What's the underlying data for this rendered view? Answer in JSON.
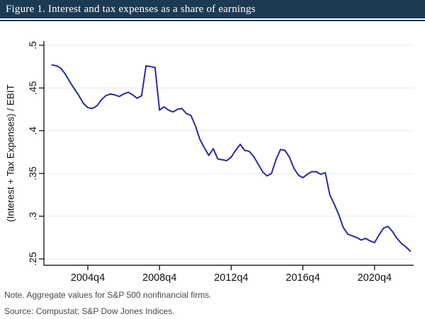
{
  "header": {
    "title": "Figure 1. Interest and tax expenses as a share of earnings",
    "bar_color": "#1c3a54",
    "text_color": "#ffffff"
  },
  "notes": {
    "note": "Note. Aggregate values for S&P 500 nonfinancial firms.",
    "source": "Source: Compustat; S&P Dow Jones Indices."
  },
  "chart_data": {
    "type": "line",
    "title": "",
    "xlabel": "",
    "ylabel": "(Interest + Tax Expenses) / EBIT",
    "ylim": [
      0.25,
      0.5
    ],
    "grid": true,
    "grid_color": "#e3e9ee",
    "axis_color": "#000000",
    "line_color": "#2a2a9e",
    "legend": "none",
    "y_ticks": [
      {
        "label": ".25",
        "value": 0.25
      },
      {
        "label": ".3",
        "value": 0.3
      },
      {
        "label": ".35",
        "value": 0.35
      },
      {
        "label": ".4",
        "value": 0.4
      },
      {
        "label": ".45",
        "value": 0.45
      },
      {
        "label": ".5",
        "value": 0.5
      }
    ],
    "x_ticks": [
      "2004q4",
      "2008q4",
      "2012q4",
      "2016q4",
      "2020q4"
    ],
    "series": [
      {
        "name": "(Interest + Tax Expenses) / EBIT",
        "x": [
          "2002q4",
          "2003q1",
          "2003q2",
          "2003q3",
          "2003q4",
          "2004q1",
          "2004q2",
          "2004q3",
          "2004q4",
          "2005q1",
          "2005q2",
          "2005q3",
          "2005q4",
          "2006q1",
          "2006q2",
          "2006q3",
          "2006q4",
          "2007q1",
          "2007q2",
          "2007q3",
          "2007q4",
          "2008q1",
          "2008q2",
          "2008q3",
          "2008q4",
          "2009q1",
          "2009q2",
          "2009q3",
          "2009q4",
          "2010q1",
          "2010q2",
          "2010q3",
          "2010q4",
          "2011q1",
          "2011q2",
          "2011q3",
          "2011q4",
          "2012q1",
          "2012q2",
          "2012q3",
          "2012q4",
          "2013q1",
          "2013q2",
          "2013q3",
          "2013q4",
          "2014q1",
          "2014q2",
          "2014q3",
          "2014q4",
          "2015q1",
          "2015q2",
          "2015q3",
          "2015q4",
          "2016q1",
          "2016q2",
          "2016q3",
          "2016q4",
          "2017q1",
          "2017q2",
          "2017q3",
          "2017q4",
          "2018q1",
          "2018q2",
          "2018q3",
          "2018q4",
          "2019q1",
          "2019q2",
          "2019q3",
          "2019q4",
          "2020q1",
          "2020q2",
          "2020q3",
          "2020q4",
          "2021q1",
          "2021q2",
          "2021q3",
          "2021q4",
          "2022q1",
          "2022q2",
          "2022q3",
          "2022q4"
        ],
        "values": [
          0.477,
          0.476,
          0.473,
          0.466,
          0.457,
          0.449,
          0.441,
          0.432,
          0.427,
          0.426,
          0.429,
          0.436,
          0.441,
          0.443,
          0.442,
          0.44,
          0.443,
          0.445,
          0.442,
          0.438,
          0.441,
          0.476,
          0.475,
          0.474,
          0.424,
          0.428,
          0.424,
          0.422,
          0.425,
          0.426,
          0.42,
          0.418,
          0.406,
          0.39,
          0.38,
          0.371,
          0.379,
          0.367,
          0.366,
          0.365,
          0.369,
          0.377,
          0.384,
          0.377,
          0.376,
          0.37,
          0.361,
          0.352,
          0.347,
          0.35,
          0.366,
          0.378,
          0.377,
          0.369,
          0.356,
          0.348,
          0.345,
          0.349,
          0.352,
          0.352,
          0.349,
          0.351,
          0.325,
          0.314,
          0.302,
          0.287,
          0.279,
          0.277,
          0.275,
          0.272,
          0.274,
          0.271,
          0.269,
          0.278,
          0.286,
          0.288,
          0.282,
          0.274,
          0.268,
          0.264,
          0.259
        ]
      }
    ]
  }
}
